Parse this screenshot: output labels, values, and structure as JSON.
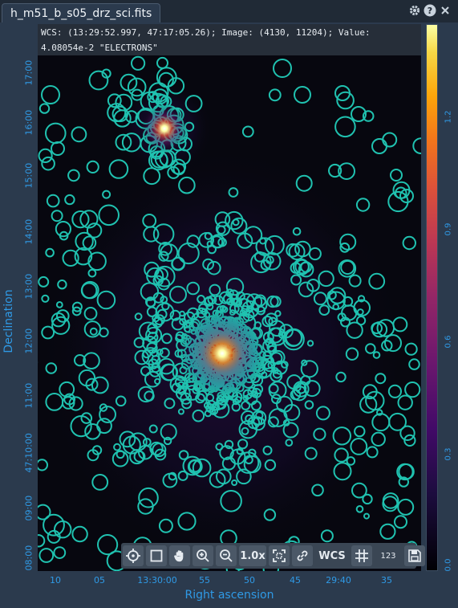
{
  "tab": {
    "title": "h_m51_b_s05_drz_sci.fits",
    "icons": [
      "gear-icon",
      "help-icon",
      "close-icon"
    ]
  },
  "cursor_info": {
    "line1": "WCS: (13:29:52.997, 47:17:05.26); Image: (4130, 11204); Value:",
    "line2": "4.08054e-2 \"ELECTRONS\""
  },
  "axes": {
    "ylabel": "Declination",
    "xlabel": "Right ascension",
    "yticks": [
      "17:00",
      "16:00",
      "15:00",
      "14:00",
      "13:00",
      "12:00",
      "11:00",
      "47:10:00",
      "09:00",
      "08:00"
    ],
    "xticks": [
      "10",
      "05",
      "13:30:00",
      "55",
      "50",
      "45",
      "29:40",
      "35"
    ]
  },
  "colorbar": {
    "ticks": [
      "1.2",
      "0.9",
      "0.6",
      "0.3",
      "0.0"
    ]
  },
  "toolbar": {
    "zoom_label": "1.0x",
    "wcs_label": "WCS",
    "pixel_label": "123"
  },
  "colors": {
    "accent": "#2f9ae6",
    "region": "#20c2b0",
    "panel": "#2b3a4d"
  }
}
